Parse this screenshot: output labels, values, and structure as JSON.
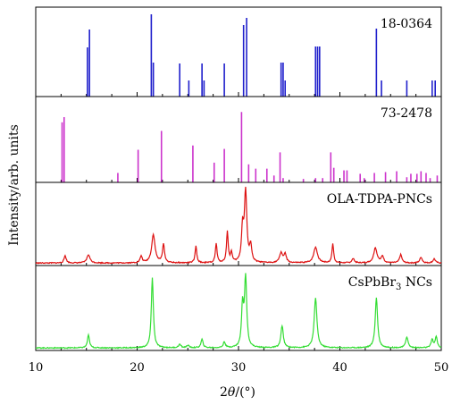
{
  "chart_data": {
    "type": "line",
    "xlabel_prefix": "2θ/(°)",
    "ylabel": "Intensity/arb. units",
    "xlim": [
      10,
      50
    ],
    "xticks": [
      10,
      20,
      30,
      40,
      50
    ],
    "grid": false,
    "panels": [
      {
        "label": "18-0364",
        "kind": "sticks",
        "color": "#1f1fcc",
        "sticks": [
          [
            15.1,
            0.55
          ],
          [
            15.3,
            0.75
          ],
          [
            21.4,
            0.92
          ],
          [
            21.6,
            0.38
          ],
          [
            24.2,
            0.37
          ],
          [
            25.1,
            0.18
          ],
          [
            26.4,
            0.37
          ],
          [
            26.6,
            0.18
          ],
          [
            28.6,
            0.37
          ],
          [
            30.5,
            0.8
          ],
          [
            30.8,
            0.88
          ],
          [
            34.2,
            0.38
          ],
          [
            34.4,
            0.38
          ],
          [
            34.6,
            0.18
          ],
          [
            37.6,
            0.56
          ],
          [
            37.8,
            0.56
          ],
          [
            38.0,
            0.56
          ],
          [
            43.6,
            0.76
          ],
          [
            44.1,
            0.18
          ],
          [
            46.6,
            0.18
          ],
          [
            49.1,
            0.18
          ],
          [
            49.4,
            0.18
          ]
        ]
      },
      {
        "label": "73-2478",
        "kind": "sticks",
        "color": "#cc33cc",
        "sticks": [
          [
            12.6,
            0.7
          ],
          [
            12.8,
            0.76
          ],
          [
            18.1,
            0.11
          ],
          [
            20.1,
            0.38
          ],
          [
            22.4,
            0.6
          ],
          [
            25.5,
            0.43
          ],
          [
            27.6,
            0.23
          ],
          [
            28.6,
            0.39
          ],
          [
            30.3,
            0.82
          ],
          [
            31.0,
            0.21
          ],
          [
            31.7,
            0.16
          ],
          [
            32.8,
            0.16
          ],
          [
            33.5,
            0.08
          ],
          [
            34.1,
            0.35
          ],
          [
            34.4,
            0.05
          ],
          [
            36.4,
            0.04
          ],
          [
            37.6,
            0.05
          ],
          [
            38.3,
            0.05
          ],
          [
            39.1,
            0.35
          ],
          [
            39.4,
            0.17
          ],
          [
            40.4,
            0.14
          ],
          [
            40.7,
            0.14
          ],
          [
            42.0,
            0.1
          ],
          [
            42.4,
            0.05
          ],
          [
            43.4,
            0.11
          ],
          [
            44.5,
            0.12
          ],
          [
            45.6,
            0.13
          ],
          [
            46.6,
            0.06
          ],
          [
            47.0,
            0.1
          ],
          [
            47.6,
            0.1
          ],
          [
            48.0,
            0.13
          ],
          [
            48.5,
            0.11
          ],
          [
            48.9,
            0.05
          ],
          [
            49.6,
            0.08
          ]
        ]
      },
      {
        "label": "OLA-TDPA-PNCs",
        "kind": "pattern",
        "color": "#dd1111",
        "baseline": 0.03,
        "peaks": [
          [
            12.9,
            0.09,
            0.12
          ],
          [
            15.2,
            0.1,
            0.18
          ],
          [
            20.4,
            0.08,
            0.12
          ],
          [
            21.6,
            0.34,
            0.2
          ],
          [
            22.6,
            0.22,
            0.12
          ],
          [
            25.8,
            0.2,
            0.1
          ],
          [
            27.8,
            0.23,
            0.1
          ],
          [
            28.9,
            0.37,
            0.1
          ],
          [
            29.3,
            0.12,
            0.1
          ],
          [
            30.4,
            0.4,
            0.12
          ],
          [
            30.7,
            0.85,
            0.14
          ],
          [
            31.2,
            0.2,
            0.12
          ],
          [
            34.2,
            0.12,
            0.18
          ],
          [
            34.6,
            0.1,
            0.14
          ],
          [
            37.6,
            0.19,
            0.22
          ],
          [
            39.3,
            0.23,
            0.1
          ],
          [
            41.3,
            0.05,
            0.14
          ],
          [
            43.5,
            0.18,
            0.2
          ],
          [
            44.2,
            0.08,
            0.14
          ],
          [
            46.0,
            0.1,
            0.14
          ],
          [
            48.0,
            0.07,
            0.14
          ],
          [
            49.3,
            0.05,
            0.14
          ]
        ]
      },
      {
        "label": "CsPbBr",
        "label_sub": "3",
        "label_suffix": " NCs",
        "kind": "pattern",
        "color": "#33dd33",
        "baseline": 0.03,
        "peaks": [
          [
            15.2,
            0.15,
            0.12
          ],
          [
            21.5,
            0.83,
            0.12
          ],
          [
            24.2,
            0.04,
            0.14
          ],
          [
            25.0,
            0.03,
            0.14
          ],
          [
            26.4,
            0.1,
            0.12
          ],
          [
            28.6,
            0.07,
            0.12
          ],
          [
            30.4,
            0.48,
            0.12
          ],
          [
            30.7,
            0.82,
            0.13
          ],
          [
            34.3,
            0.26,
            0.14
          ],
          [
            37.6,
            0.59,
            0.16
          ],
          [
            43.6,
            0.59,
            0.14
          ],
          [
            46.6,
            0.13,
            0.14
          ],
          [
            49.1,
            0.1,
            0.12
          ],
          [
            49.5,
            0.13,
            0.12
          ]
        ]
      }
    ]
  }
}
